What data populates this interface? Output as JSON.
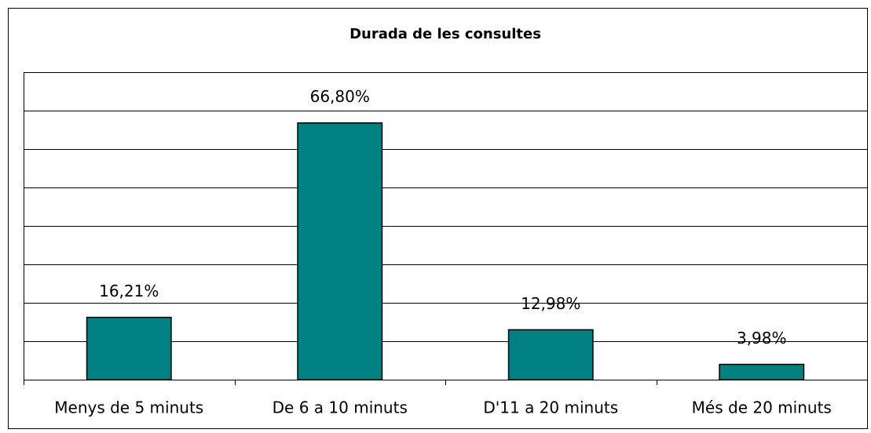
{
  "chart_data": {
    "type": "bar",
    "title": "Durada de les consultes",
    "categories": [
      "Menys de 5 minuts",
      "De 6 a 10 minuts",
      "D'11 a 20 minuts",
      "Més de 20 minuts"
    ],
    "values": [
      16.21,
      66.8,
      12.98,
      3.98
    ],
    "value_labels": [
      "16,21%",
      "66,80%",
      "12,98%",
      "3,98%"
    ],
    "color": "#008080",
    "ylim": [
      0,
      80
    ],
    "yticks": [
      0,
      10,
      20,
      30,
      40,
      50,
      60,
      70,
      80
    ],
    "grid": true
  }
}
